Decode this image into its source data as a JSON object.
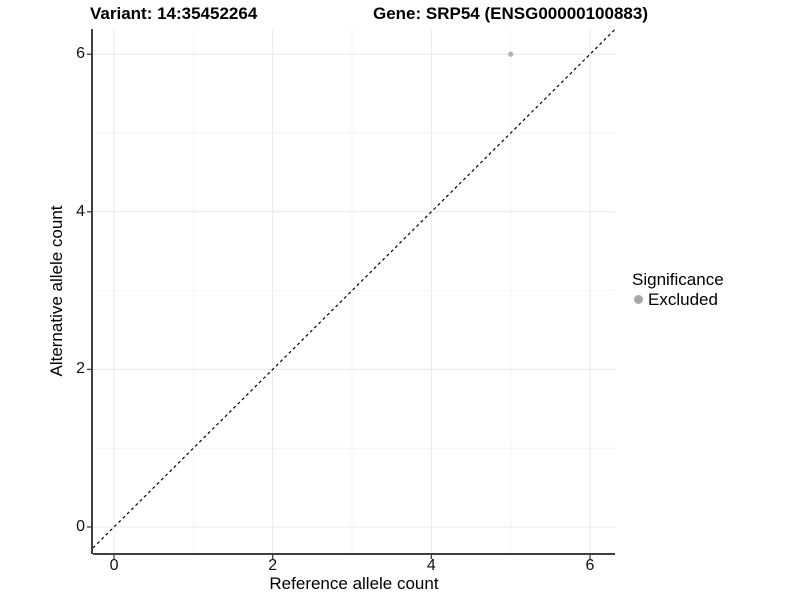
{
  "titles": {
    "variant": "Variant: 14:35452264",
    "gene": "Gene: SRP54 (ENSG00000100883)"
  },
  "chart_data": {
    "type": "scatter",
    "title_left": "Variant: 14:35452264",
    "title_right": "Gene: SRP54 (ENSG00000100883)",
    "xlabel": "Reference allele count",
    "ylabel": "Alternative allele count",
    "xlim": [
      -0.265,
      6.315
    ],
    "ylim": [
      -0.33,
      6.32
    ],
    "x_major_ticks": [
      0,
      2,
      4,
      6
    ],
    "y_major_ticks": [
      0,
      2,
      4,
      6
    ],
    "x_minor_ticks": [
      1,
      3,
      5
    ],
    "y_minor_ticks": [
      1,
      3,
      5
    ],
    "grid": true,
    "series": [
      {
        "name": "Excluded",
        "color": "#b3b3b3",
        "point_radius": 2.6,
        "points": [
          {
            "x": 5,
            "y": 6
          }
        ]
      }
    ],
    "reference_line": {
      "type": "identity",
      "slope": 1,
      "intercept": 0,
      "style": "dashed",
      "color": "#000000"
    },
    "legend": {
      "title": "Significance",
      "position": "right",
      "items": [
        {
          "label": "Excluded",
          "color": "#a8a8a8"
        }
      ]
    }
  },
  "colors": {
    "background": "#ffffff",
    "grid_major": "#e8e8e8",
    "grid_minor": "#f4f4f4",
    "axis_line": "#3f3f3f",
    "tick_mark": "#3f3f3f",
    "point": "#b3b3b3"
  }
}
